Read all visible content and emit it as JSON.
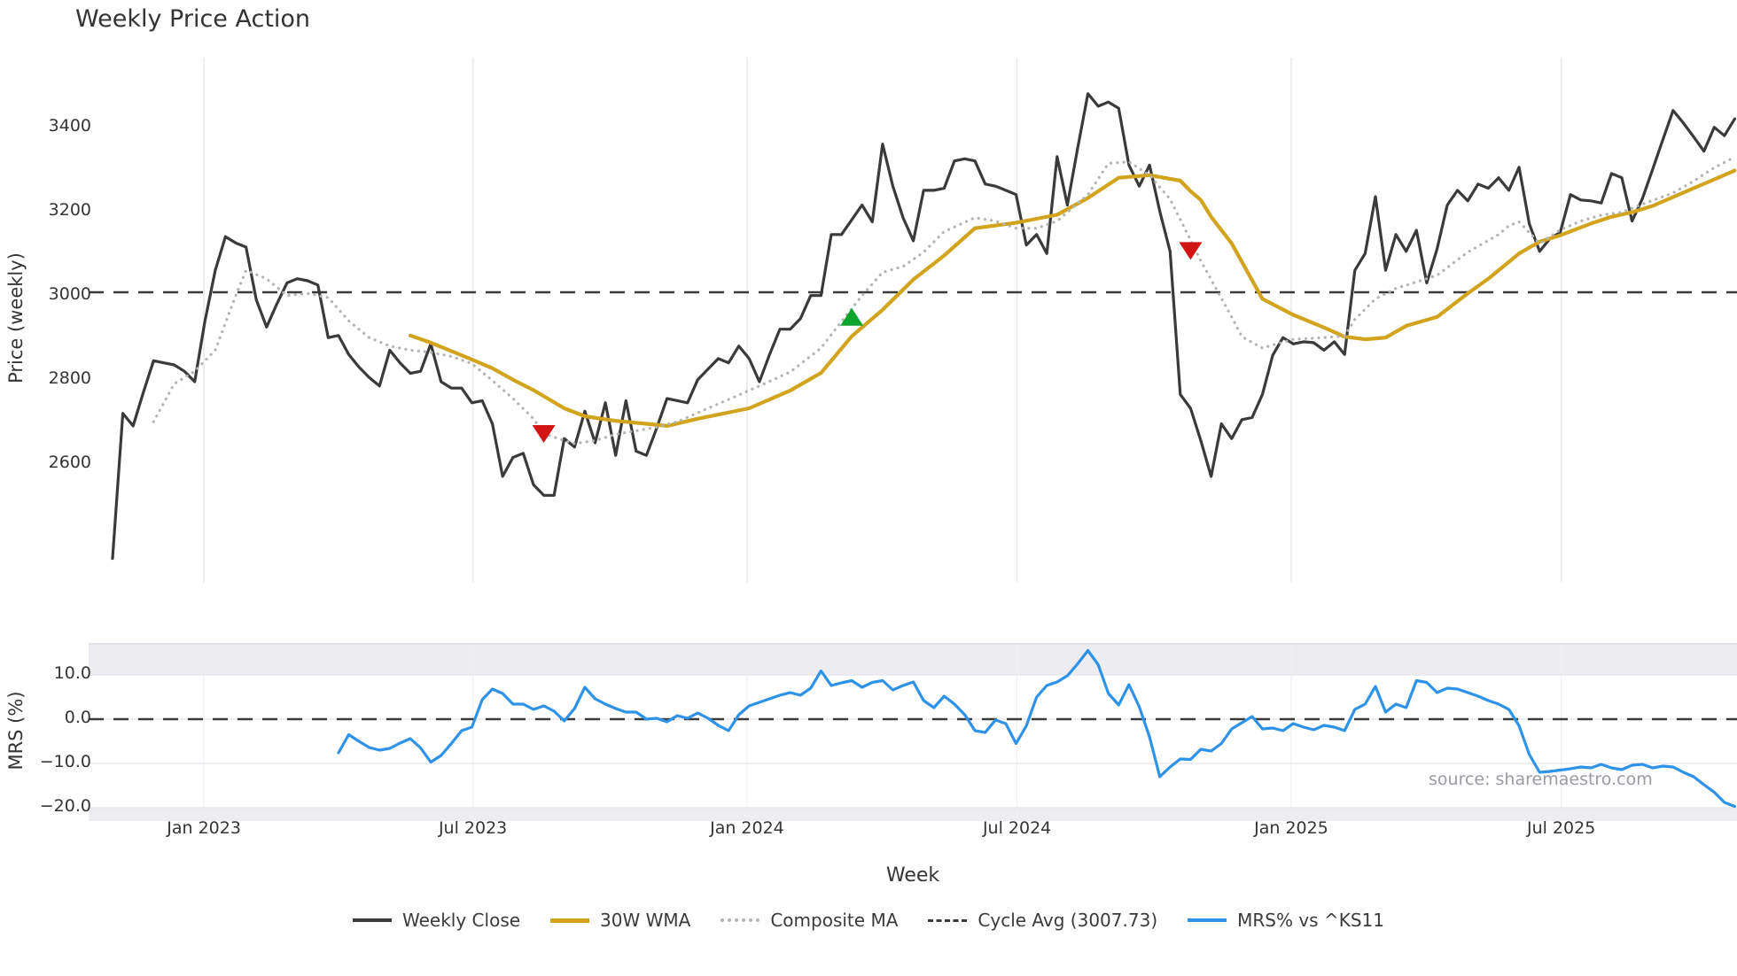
{
  "title": "Weekly Price Action",
  "watermark": "source: sharemaestro.com",
  "colors": {
    "close": "#3a3a3a",
    "wma": "#d2a41e",
    "composite": "#b3b3b3",
    "cycle": "#3a3a3a",
    "mrs": "#2e93e8",
    "sell": "#d21414",
    "buy": "#0da32e",
    "grid": "#e8e8ee",
    "grid_faint": "#efeff4",
    "band": "#ededf1",
    "spine": "#d9d9e0"
  },
  "x_axis": {
    "label": "Week",
    "tick_labels": [
      "Jan 2023",
      "Jul 2023",
      "Jan 2024",
      "Jul 2024",
      "Jan 2025",
      "Jul 2025"
    ],
    "tick_weeks": [
      8.9,
      35.1,
      61.8,
      88.1,
      114.8,
      141.1
    ]
  },
  "legend": [
    {
      "label": "Weekly Close",
      "key": "close",
      "style": "solid"
    },
    {
      "label": "30W WMA",
      "key": "wma",
      "style": "solid"
    },
    {
      "label": "Composite MA",
      "key": "composite",
      "style": "dotted"
    },
    {
      "label": "Cycle Avg (3007.73)",
      "key": "cycle",
      "style": "dashed"
    },
    {
      "label": "MRS% vs ^KS11",
      "key": "mrs",
      "style": "solid"
    }
  ],
  "chart_data": [
    {
      "type": "line",
      "panel": "price",
      "title": "Weekly Price Action",
      "xlabel": "Week",
      "ylabel": "Price (weekly)",
      "x_unit": "week index (week 0 = first plotted week, late Oct 2022; ~26 weeks per half-year tick)",
      "xlim": [
        -2.3,
        158.3
      ],
      "ylim": [
        2320,
        3560
      ],
      "grid": "vertical-only",
      "y_ticks": [
        2600,
        2800,
        3000,
        3200,
        3400
      ],
      "cycle_avg": 3007.73,
      "series": [
        {
          "name": "Weekly Close",
          "style": "solid",
          "width": 3.2,
          "color_key": "close",
          "x_start": 0,
          "values": [
            2375,
            2720,
            2690,
            2770,
            2845,
            2840,
            2835,
            2820,
            2795,
            2940,
            3060,
            3140,
            3125,
            3115,
            2990,
            2925,
            2980,
            3030,
            3040,
            3035,
            3025,
            2900,
            2905,
            2860,
            2830,
            2805,
            2785,
            2870,
            2840,
            2815,
            2820,
            2885,
            2795,
            2780,
            2780,
            2745,
            2750,
            2695,
            2570,
            2615,
            2625,
            2550,
            2525,
            2525,
            2660,
            2640,
            2725,
            2650,
            2745,
            2620,
            2750,
            2630,
            2620,
            2685,
            2755,
            2750,
            2745,
            2800,
            2825,
            2850,
            2840,
            2880,
            2850,
            2795,
            2860,
            2920,
            2920,
            2945,
            3000,
            3000,
            3145,
            3145,
            3180,
            3215,
            3175,
            3360,
            3260,
            3185,
            3130,
            3250,
            3250,
            3255,
            3320,
            3325,
            3320,
            3265,
            3260,
            3250,
            3240,
            3120,
            3145,
            3100,
            3330,
            3215,
            3350,
            3480,
            3450,
            3460,
            3445,
            3310,
            3260,
            3310,
            3200,
            3105,
            2765,
            2732,
            2655,
            2570,
            2695,
            2660,
            2705,
            2710,
            2765,
            2858,
            2900,
            2885,
            2890,
            2888,
            2870,
            2890,
            2860,
            3060,
            3100,
            3235,
            3060,
            3145,
            3105,
            3155,
            3030,
            3110,
            3215,
            3250,
            3225,
            3265,
            3255,
            3280,
            3250,
            3305,
            3170,
            3105,
            3135,
            3150,
            3240,
            3227,
            3225,
            3220,
            3290,
            3280,
            3177,
            3230,
            3300,
            3370,
            3440,
            3410,
            3377,
            3343,
            3400,
            3380,
            3420
          ]
        },
        {
          "name": "30W WMA",
          "style": "solid",
          "width": 4.2,
          "color_key": "wma",
          "points": [
            [
              29,
              2905
            ],
            [
              31,
              2888
            ],
            [
              33,
              2868
            ],
            [
              35,
              2848
            ],
            [
              37,
              2827
            ],
            [
              39,
              2800
            ],
            [
              41,
              2775
            ],
            [
              44,
              2732
            ],
            [
              46,
              2713
            ],
            [
              49,
              2702
            ],
            [
              52,
              2695
            ],
            [
              54,
              2690
            ],
            [
              57,
              2707
            ],
            [
              62,
              2732
            ],
            [
              66,
              2774
            ],
            [
              69,
              2816
            ],
            [
              72,
              2903
            ],
            [
              75,
              2966
            ],
            [
              78,
              3038
            ],
            [
              81,
              3095
            ],
            [
              84,
              3160
            ],
            [
              88,
              3173
            ],
            [
              92,
              3192
            ],
            [
              95,
              3232
            ],
            [
              98,
              3280
            ],
            [
              101,
              3286
            ],
            [
              104,
              3273
            ],
            [
              105,
              3248
            ],
            [
              106,
              3227
            ],
            [
              107,
              3187
            ],
            [
              109,
              3124
            ],
            [
              112,
              2992
            ],
            [
              115,
              2954
            ],
            [
              118,
              2924
            ],
            [
              120,
              2902
            ],
            [
              122,
              2896
            ],
            [
              124,
              2900
            ],
            [
              126,
              2928
            ],
            [
              129,
              2949
            ],
            [
              132,
              3005
            ],
            [
              134,
              3040
            ],
            [
              137,
              3100
            ],
            [
              139,
              3128
            ],
            [
              141,
              3143
            ],
            [
              144,
              3171
            ],
            [
              146,
              3187
            ],
            [
              148,
              3198
            ],
            [
              150,
              3213
            ],
            [
              152,
              3234
            ],
            [
              154,
              3255
            ],
            [
              156,
              3276
            ],
            [
              158,
              3297
            ]
          ]
        },
        {
          "name": "Composite MA",
          "style": "dotted",
          "width": 3.2,
          "color_key": "composite",
          "points": [
            [
              4,
              2700
            ],
            [
              6,
              2790
            ],
            [
              8,
              2820
            ],
            [
              10,
              2870
            ],
            [
              12,
              3000
            ],
            [
              13,
              3060
            ],
            [
              15,
              3040
            ],
            [
              17,
              3000
            ],
            [
              19,
              3005
            ],
            [
              21,
              2995
            ],
            [
              23,
              2940
            ],
            [
              25,
              2900
            ],
            [
              27,
              2880
            ],
            [
              29,
              2870
            ],
            [
              31,
              2865
            ],
            [
              33,
              2855
            ],
            [
              35,
              2838
            ],
            [
              37,
              2798
            ],
            [
              39,
              2755
            ],
            [
              41,
              2707
            ],
            [
              42,
              2672
            ],
            [
              44,
              2655
            ],
            [
              45,
              2648
            ],
            [
              47,
              2655
            ],
            [
              49,
              2670
            ],
            [
              53,
              2687
            ],
            [
              55,
              2700
            ],
            [
              58,
              2732
            ],
            [
              62,
              2774
            ],
            [
              66,
              2818
            ],
            [
              69,
              2875
            ],
            [
              70,
              2907
            ],
            [
              73,
              3000
            ],
            [
              75,
              3055
            ],
            [
              77,
              3069
            ],
            [
              79,
              3103
            ],
            [
              81,
              3152
            ],
            [
              84,
              3185
            ],
            [
              86,
              3177
            ],
            [
              88,
              3160
            ],
            [
              90,
              3160
            ],
            [
              92,
              3177
            ],
            [
              95,
              3240
            ],
            [
              97,
              3314
            ],
            [
              99,
              3318
            ],
            [
              101,
              3286
            ],
            [
              103,
              3229
            ],
            [
              105,
              3132
            ],
            [
              106,
              3082
            ],
            [
              107,
              3038
            ],
            [
              109,
              2949
            ],
            [
              110,
              2902
            ],
            [
              112,
              2875
            ],
            [
              115,
              2896
            ],
            [
              118,
              2900
            ],
            [
              120,
              2904
            ],
            [
              121,
              2943
            ],
            [
              123,
              2992
            ],
            [
              125,
              3017
            ],
            [
              128,
              3040
            ],
            [
              129,
              3048
            ],
            [
              132,
              3103
            ],
            [
              135,
              3145
            ],
            [
              136,
              3166
            ],
            [
              137,
              3175
            ],
            [
              139,
              3124
            ],
            [
              141,
              3156
            ],
            [
              143,
              3177
            ],
            [
              145,
              3191
            ],
            [
              147,
              3198
            ],
            [
              149,
              3217
            ],
            [
              152,
              3244
            ],
            [
              154,
              3272
            ],
            [
              156,
              3304
            ],
            [
              158,
              3329
            ]
          ]
        },
        {
          "name": "Cycle Avg (3007.73)",
          "style": "dashed",
          "width": 2.6,
          "color_key": "cycle",
          "const": 3007.73
        }
      ],
      "signals": [
        {
          "week": 42,
          "price": 2675,
          "dir": "down",
          "color_key": "sell"
        },
        {
          "week": 72,
          "price": 2945,
          "dir": "up",
          "color_key": "buy"
        },
        {
          "week": 105,
          "price": 3110,
          "dir": "down",
          "color_key": "sell"
        }
      ]
    },
    {
      "type": "line",
      "panel": "mrs",
      "xlabel": "Week",
      "ylabel": "MRS (%)",
      "xlim": [
        -2.3,
        158.3
      ],
      "ylim": [
        -23,
        17
      ],
      "y_ticks": [
        10.0,
        0.0,
        -10.0,
        -20.0
      ],
      "zero_line_dashed": true,
      "bands": [
        [
          10,
          17
        ],
        [
          -23,
          -20
        ]
      ],
      "series": [
        {
          "name": "MRS% vs ^KS11",
          "style": "solid",
          "width": 3.2,
          "color_key": "mrs",
          "x_start": 22,
          "values": [
            -7.6,
            -3.5,
            -5.0,
            -6.4,
            -7.0,
            -6.6,
            -5.4,
            -4.4,
            -6.5,
            -9.7,
            -8.2,
            -5.5,
            -2.6,
            -1.8,
            4.4,
            6.8,
            5.8,
            3.4,
            3.4,
            2.2,
            3.0,
            1.8,
            -0.4,
            2.4,
            7.2,
            4.6,
            3.4,
            2.4,
            1.6,
            1.6,
            0.0,
            0.2,
            -0.6,
            0.8,
            0.2,
            1.4,
            0.2,
            -1.4,
            -2.6,
            1.0,
            3.0,
            3.8,
            4.6,
            5.4,
            6.0,
            5.4,
            7.0,
            10.9,
            7.6,
            8.2,
            8.7,
            7.2,
            8.3,
            8.7,
            6.6,
            7.6,
            8.4,
            4.2,
            2.6,
            5.2,
            3.4,
            1.0,
            -2.6,
            -3.0,
            -0.2,
            -1.0,
            -5.5,
            -1.5,
            5.0,
            7.6,
            8.4,
            9.8,
            12.5,
            15.5,
            12.3,
            5.8,
            3.2,
            7.8,
            2.8,
            -4.0,
            -13.0,
            -10.8,
            -9.0,
            -9.1,
            -6.8,
            -7.2,
            -5.5,
            -2.2,
            -0.8,
            0.6,
            -2.2,
            -2.0,
            -2.6,
            -1.0,
            -1.8,
            -2.4,
            -1.4,
            -1.8,
            -2.6,
            2.2,
            3.4,
            7.4,
            1.6,
            3.4,
            2.6,
            8.7,
            8.3,
            6.0,
            7.0,
            6.8,
            6.0,
            5.2,
            4.2,
            3.4,
            2.2,
            -1.5,
            -8.0,
            -12.0,
            -11.8,
            -11.5,
            -11.2,
            -10.8,
            -11.0,
            -10.2,
            -11.0,
            -11.4,
            -10.4,
            -10.2,
            -11.0,
            -10.6,
            -10.8,
            -12.0,
            -13.0,
            -14.8,
            -16.5,
            -18.8,
            -19.7
          ]
        }
      ]
    }
  ]
}
